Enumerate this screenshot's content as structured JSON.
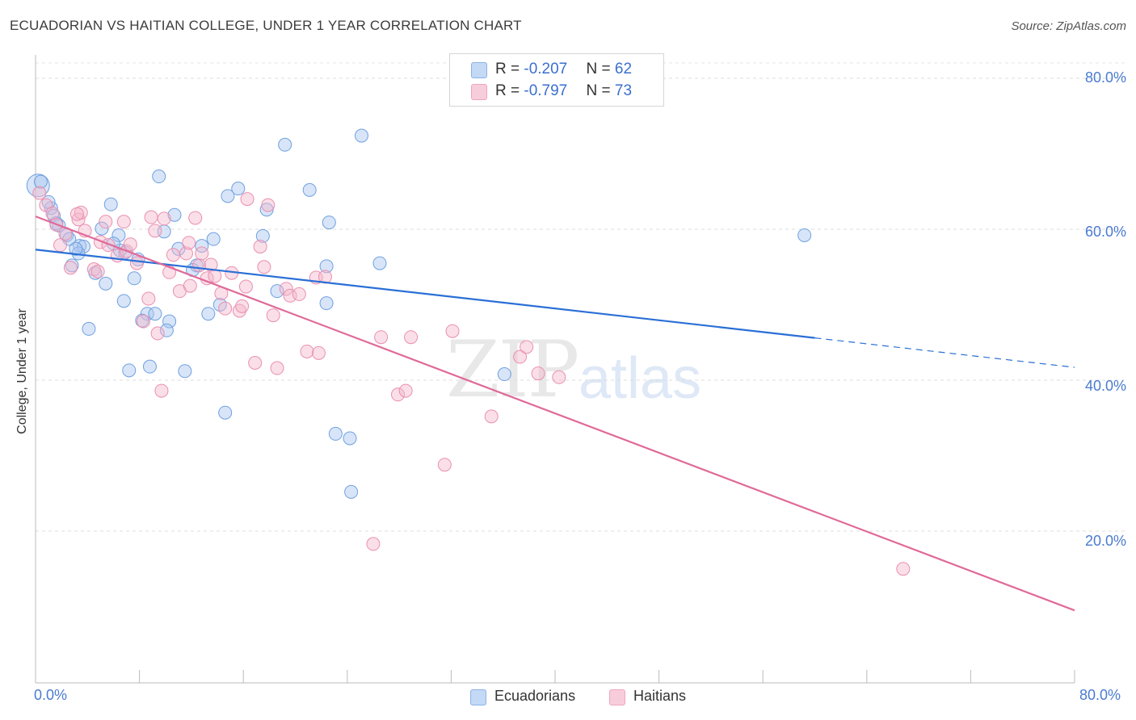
{
  "title": "ECUADORIAN VS HAITIAN COLLEGE, UNDER 1 YEAR CORRELATION CHART",
  "source": "Source: ZipAtlas.com",
  "watermark": {
    "zip": "ZIP",
    "atlas": "atlas"
  },
  "legend_top": [
    {
      "r_label": "R = ",
      "r_value": "-0.207",
      "n_label": "N = ",
      "n_value": "62",
      "color": "#a8c6f0"
    },
    {
      "r_label": "R = ",
      "r_value": "-0.797",
      "n_label": "N = ",
      "n_value": "73",
      "color": "#f5b8cc"
    }
  ],
  "legend_bottom": [
    {
      "label": "Ecuadorians",
      "color": "#a8c6f0"
    },
    {
      "label": "Haitians",
      "color": "#f5b8cc"
    }
  ],
  "chart_data": {
    "type": "scatter",
    "title": "ECUADORIAN VS HAITIAN COLLEGE, UNDER 1 YEAR CORRELATION CHART",
    "xlabel": "",
    "ylabel": "College, Under 1 year",
    "xlim": [
      0,
      80
    ],
    "ylim": [
      0,
      80
    ],
    "x_tick_labels": [
      "0.0%",
      "80.0%"
    ],
    "y_tick_labels": [
      "80.0%",
      "60.0%",
      "40.0%",
      "20.0%"
    ],
    "y_ticks": [
      80,
      60,
      40,
      20
    ],
    "grid": true,
    "series": [
      {
        "name": "Ecuadorians",
        "color": "#6fa0e0",
        "fill": "rgba(168,198,240,0.45)",
        "line_color": "#2a6fd6",
        "trend": {
          "x0": 0,
          "y0": 57.3,
          "x1": 60,
          "y1": 45.6,
          "dash_to_x": 80,
          "dash_to_y": 41.7
        },
        "points": [
          [
            0.2,
            65.8
          ],
          [
            1.2,
            62.8
          ],
          [
            1.4,
            61.8
          ],
          [
            1.8,
            60.5
          ],
          [
            1.6,
            60.8
          ],
          [
            2.4,
            59.2
          ],
          [
            2.6,
            58.7
          ],
          [
            3.4,
            57.8
          ],
          [
            3.7,
            57.7
          ],
          [
            3.3,
            56.8
          ],
          [
            2.8,
            55.2
          ],
          [
            4.6,
            54.2
          ],
          [
            5.4,
            52.8
          ],
          [
            5.8,
            63.3
          ],
          [
            5.1,
            60.1
          ],
          [
            6.4,
            59.2
          ],
          [
            6.5,
            57.2
          ],
          [
            6.9,
            56.9
          ],
          [
            7.6,
            53.5
          ],
          [
            7.9,
            56.0
          ],
          [
            6.8,
            50.5
          ],
          [
            8.6,
            48.8
          ],
          [
            8.2,
            47.9
          ],
          [
            9.2,
            48.8
          ],
          [
            10.3,
            47.8
          ],
          [
            10.1,
            46.6
          ],
          [
            9.5,
            67.0
          ],
          [
            10.7,
            61.9
          ],
          [
            9.9,
            59.7
          ],
          [
            11.0,
            57.4
          ],
          [
            12.4,
            55.2
          ],
          [
            12.8,
            57.8
          ],
          [
            13.7,
            58.7
          ],
          [
            14.2,
            50.0
          ],
          [
            13.3,
            48.8
          ],
          [
            12.1,
            54.6
          ],
          [
            14.8,
            64.4
          ],
          [
            15.6,
            65.4
          ],
          [
            17.8,
            62.6
          ],
          [
            17.5,
            59.1
          ],
          [
            18.6,
            51.8
          ],
          [
            19.2,
            71.2
          ],
          [
            21.1,
            65.2
          ],
          [
            22.6,
            60.9
          ],
          [
            22.4,
            55.1
          ],
          [
            22.4,
            50.2
          ],
          [
            25.1,
            72.4
          ],
          [
            26.5,
            55.5
          ],
          [
            4.1,
            46.8
          ],
          [
            7.2,
            41.3
          ],
          [
            8.8,
            41.8
          ],
          [
            11.5,
            41.2
          ],
          [
            14.6,
            35.7
          ],
          [
            23.1,
            32.9
          ],
          [
            24.2,
            32.3
          ],
          [
            24.3,
            25.2
          ],
          [
            36.1,
            40.8
          ],
          [
            59.2,
            59.2
          ],
          [
            0.4,
            66.3
          ],
          [
            1.0,
            63.6
          ],
          [
            3.1,
            57.4
          ],
          [
            6.0,
            58.1
          ]
        ]
      },
      {
        "name": "Haitians",
        "color": "#ea8fb0",
        "fill": "rgba(245,184,204,0.45)",
        "line_color": "#e06a98",
        "trend": {
          "x0": 0,
          "y0": 61.7,
          "x1": 80,
          "y1": 9.5
        },
        "points": [
          [
            0.3,
            64.8
          ],
          [
            0.8,
            63.2
          ],
          [
            1.3,
            62.1
          ],
          [
            1.6,
            60.6
          ],
          [
            1.9,
            57.9
          ],
          [
            2.3,
            59.4
          ],
          [
            2.7,
            54.9
          ],
          [
            3.3,
            61.3
          ],
          [
            3.5,
            62.2
          ],
          [
            3.8,
            59.8
          ],
          [
            4.5,
            54.7
          ],
          [
            4.8,
            54.4
          ],
          [
            5.0,
            58.3
          ],
          [
            5.4,
            61.0
          ],
          [
            5.6,
            57.9
          ],
          [
            6.3,
            56.5
          ],
          [
            6.8,
            61.0
          ],
          [
            7.0,
            57.1
          ],
          [
            7.3,
            58.0
          ],
          [
            7.8,
            55.5
          ],
          [
            8.3,
            47.8
          ],
          [
            8.7,
            50.8
          ],
          [
            8.9,
            61.6
          ],
          [
            9.2,
            59.8
          ],
          [
            9.9,
            61.4
          ],
          [
            10.3,
            54.3
          ],
          [
            10.6,
            56.6
          ],
          [
            11.1,
            51.8
          ],
          [
            11.6,
            56.8
          ],
          [
            11.9,
            52.5
          ],
          [
            12.3,
            61.5
          ],
          [
            12.6,
            55.2
          ],
          [
            12.8,
            56.8
          ],
          [
            13.2,
            53.5
          ],
          [
            13.5,
            55.3
          ],
          [
            13.8,
            53.8
          ],
          [
            14.3,
            51.5
          ],
          [
            14.6,
            49.5
          ],
          [
            15.1,
            54.2
          ],
          [
            15.7,
            49.2
          ],
          [
            15.9,
            49.8
          ],
          [
            16.2,
            52.4
          ],
          [
            16.3,
            64.0
          ],
          [
            17.3,
            57.7
          ],
          [
            17.6,
            55.0
          ],
          [
            17.9,
            63.2
          ],
          [
            18.3,
            48.6
          ],
          [
            19.3,
            52.1
          ],
          [
            19.6,
            51.2
          ],
          [
            20.3,
            51.4
          ],
          [
            21.6,
            53.6
          ],
          [
            22.3,
            53.7
          ],
          [
            16.9,
            42.3
          ],
          [
            18.6,
            41.6
          ],
          [
            20.9,
            43.8
          ],
          [
            21.8,
            43.6
          ],
          [
            26.6,
            45.7
          ],
          [
            28.9,
            45.7
          ],
          [
            27.9,
            38.1
          ],
          [
            28.5,
            38.6
          ],
          [
            32.1,
            46.5
          ],
          [
            31.5,
            28.8
          ],
          [
            35.1,
            35.2
          ],
          [
            37.3,
            43.1
          ],
          [
            37.8,
            44.4
          ],
          [
            38.7,
            40.9
          ],
          [
            40.3,
            40.4
          ],
          [
            26.0,
            18.3
          ],
          [
            66.8,
            15.0
          ],
          [
            9.7,
            38.6
          ],
          [
            9.4,
            46.2
          ],
          [
            3.2,
            62.0
          ],
          [
            11.8,
            58.2
          ]
        ]
      }
    ]
  }
}
